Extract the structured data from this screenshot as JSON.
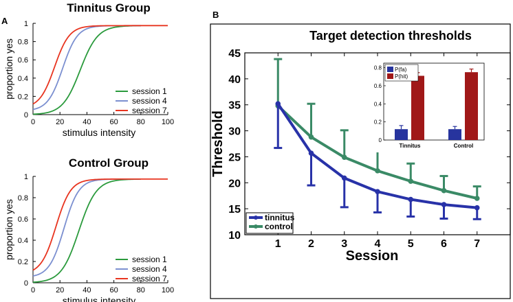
{
  "panel_labels": {
    "a": "A",
    "b": "B"
  },
  "colors": {
    "green": "#2a9a3c",
    "blue_light": "#7b8fd0",
    "red": "#e8341f",
    "tinnitus": "#2832a8",
    "control": "#3a8a66",
    "bar_fa": "#27349e",
    "bar_hit": "#a01818"
  },
  "chart_data": [
    {
      "id": "tinnitus-psychometric",
      "type": "line",
      "title": "Tinnitus Group",
      "xlabel": "stimulus intensity",
      "ylabel": "proportion yes",
      "xlim": [
        0,
        100
      ],
      "ylim": [
        0,
        1
      ],
      "xticks": [
        "0",
        "20",
        "40",
        "60",
        "80",
        "100"
      ],
      "yticks": [
        "0",
        "0.2",
        "0.4",
        "0.6",
        "0.8",
        "1"
      ],
      "legend": {
        "position": "bottom-right"
      },
      "series": [
        {
          "name": "session 1",
          "color": "#2a9a3c",
          "mu": 35,
          "s": 6.5,
          "start": 0.0,
          "end": 0.975,
          "xmax": 80
        },
        {
          "name": "session 4",
          "color": "#7b8fd0",
          "mu": 22,
          "s": 5.5,
          "start": 0.04,
          "end": 0.975,
          "xmax": 80
        },
        {
          "name": "session 7",
          "color": "#e8341f",
          "mu": 16,
          "s": 5.5,
          "start": 0.07,
          "end": 0.975,
          "xmax": 100
        }
      ]
    },
    {
      "id": "control-psychometric",
      "type": "line",
      "title": "Control Group",
      "xlabel": "stimulus intensity",
      "ylabel": "proportion yes",
      "xlim": [
        0,
        100
      ],
      "ylim": [
        0,
        1
      ],
      "xticks": [
        "0",
        "20",
        "40",
        "60",
        "80",
        "100"
      ],
      "yticks": [
        "0",
        "0.2",
        "0.4",
        "0.6",
        "0.8",
        "1"
      ],
      "legend": {
        "position": "bottom-right"
      },
      "series": [
        {
          "name": "session 1",
          "color": "#2a9a3c",
          "mu": 34,
          "s": 6.5,
          "start": 0.0,
          "end": 0.975,
          "xmax": 80
        },
        {
          "name": "session 4",
          "color": "#7b8fd0",
          "mu": 23,
          "s": 5.5,
          "start": 0.05,
          "end": 0.975,
          "xmax": 80
        },
        {
          "name": "session 7",
          "color": "#e8341f",
          "mu": 17,
          "s": 5.5,
          "start": 0.08,
          "end": 0.975,
          "xmax": 100
        }
      ]
    },
    {
      "id": "target-thresholds",
      "type": "line",
      "title": "Target detection thresholds",
      "xlabel": "Session",
      "ylabel": "Threshold",
      "xlim": [
        0,
        8
      ],
      "ylim": [
        10,
        45
      ],
      "xticks": [
        "1",
        "2",
        "3",
        "4",
        "5",
        "6",
        "7"
      ],
      "yticks": [
        "10",
        "15",
        "20",
        "25",
        "30",
        "35",
        "40",
        "45"
      ],
      "legend": {
        "position": "bottom-left"
      },
      "series": [
        {
          "name": "tinnitus",
          "color": "#2832a8",
          "x": [
            1,
            2,
            3,
            4,
            5,
            6,
            7
          ],
          "values": [
            35.2,
            25.7,
            20.9,
            18.3,
            16.8,
            15.8,
            15.2
          ],
          "err_lower": [
            8.5,
            6.2,
            5.6,
            4.0,
            3.3,
            2.7,
            2.2
          ]
        },
        {
          "name": "control",
          "color": "#3a8a66",
          "x": [
            1,
            2,
            3,
            4,
            5,
            6,
            7
          ],
          "values": [
            34.8,
            28.8,
            24.9,
            22.3,
            20.3,
            18.5,
            17.0
          ],
          "err_upper": [
            9.0,
            6.4,
            5.2,
            4.2,
            3.4,
            2.8,
            2.3
          ]
        }
      ]
    },
    {
      "id": "inset-bars",
      "type": "bar",
      "categories": [
        "Tinnitus",
        "Control"
      ],
      "ylim": [
        0,
        0.85
      ],
      "yticks": [
        "0",
        "0.2",
        "0.4",
        "0.6",
        "0.8"
      ],
      "legend": {
        "position": "top-left"
      },
      "series": [
        {
          "name": "P(fa)",
          "color": "#27349e",
          "values": [
            0.12,
            0.12
          ],
          "errors": [
            0.04,
            0.03
          ]
        },
        {
          "name": "P(hit)",
          "color": "#a01818",
          "values": [
            0.71,
            0.75
          ],
          "errors": [
            0.035,
            0.035
          ]
        }
      ]
    }
  ]
}
